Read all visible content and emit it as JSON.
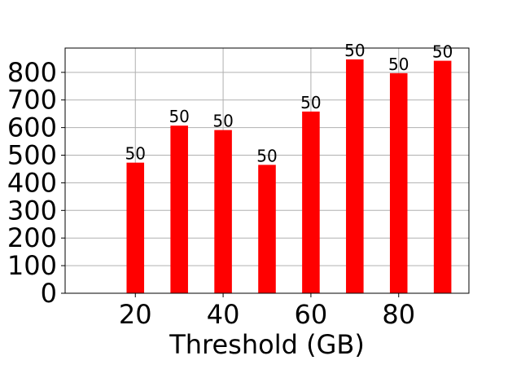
{
  "chart_data": {
    "type": "bar",
    "title": "",
    "xlabel": "Threshold (GB)",
    "ylabel": "",
    "x": [
      20,
      30,
      40,
      50,
      60,
      70,
      80,
      90
    ],
    "values": [
      473,
      607,
      591,
      465,
      658,
      847,
      797,
      842
    ],
    "bar_labels": [
      "50",
      "50",
      "50",
      "50",
      "50",
      "50",
      "50",
      "50"
    ],
    "xlim": [
      4,
      96
    ],
    "ylim": [
      0,
      888
    ],
    "xticks": [
      20,
      40,
      60,
      80
    ],
    "yticks": [
      0,
      100,
      200,
      300,
      400,
      500,
      600,
      700,
      800
    ],
    "bar_width": 4,
    "bar_color": "#ff0000",
    "grid": true,
    "legend": "none"
  }
}
